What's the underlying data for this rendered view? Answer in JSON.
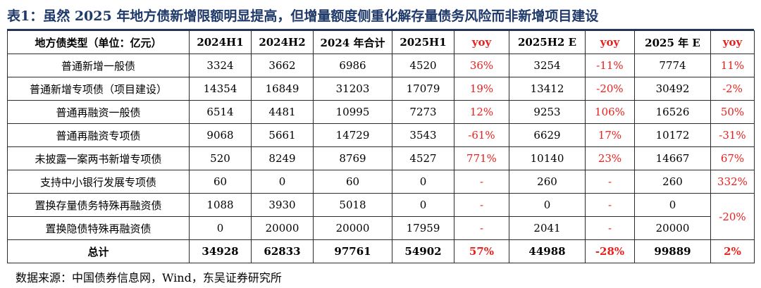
{
  "title": "表1：虽然 2025 年地方债新增限额明显提高，但增量额度侧重化解存量债务风险而非新增项目建设",
  "table": {
    "headers": [
      "地方债类型（单位：亿元）",
      "2024H1",
      "2024H2",
      "2024 年合计",
      "2025H1",
      "yoy",
      "2025H2 E",
      "yoy",
      "2025 年 E",
      "yoy"
    ],
    "rows": [
      [
        "普通新增一般债",
        "3324",
        "3662",
        "6986",
        "4520",
        "36%",
        "3254",
        "-11%",
        "7774",
        "11%"
      ],
      [
        "普通新增专项债（项目建设）",
        "14354",
        "16849",
        "31203",
        "17079",
        "19%",
        "13412",
        "-20%",
        "30492",
        "-2%"
      ],
      [
        "普通再融资一般债",
        "6514",
        "4481",
        "10995",
        "7273",
        "12%",
        "9253",
        "106%",
        "16526",
        "50%"
      ],
      [
        "普通再融资专项债",
        "9068",
        "5661",
        "14729",
        "3543",
        "-61%",
        "6629",
        "17%",
        "10172",
        "-31%"
      ],
      [
        "未披露一案两书新增专项债",
        "520",
        "8249",
        "8769",
        "4527",
        "771%",
        "10140",
        "23%",
        "14667",
        "67%"
      ],
      [
        "支持中小银行发展专项债",
        "60",
        "0",
        "60",
        "0",
        "-",
        "260",
        "-",
        "260",
        "332%"
      ]
    ],
    "merged_rows": [
      [
        "置换存量债务特殊再融资债",
        "1088",
        "3930",
        "5018",
        "0",
        "-",
        "0",
        "-",
        "0"
      ],
      [
        "置换隐债特殊再融资债",
        "0",
        "20000",
        "20000",
        "17959",
        "-",
        "2041",
        "-",
        "20000"
      ]
    ],
    "merged_yoy": "-20%",
    "total_row": [
      "总计",
      "34928",
      "62833",
      "97761",
      "54902",
      "57%",
      "44988",
      "-28%",
      "99889",
      "2%"
    ]
  },
  "source": "数据来源：中国债券信息网，Wind，东吴证券研究所",
  "colors": {
    "title": "#1F3A6A",
    "yoy_red": "#E8211E",
    "border": "#2b2b2b"
  }
}
